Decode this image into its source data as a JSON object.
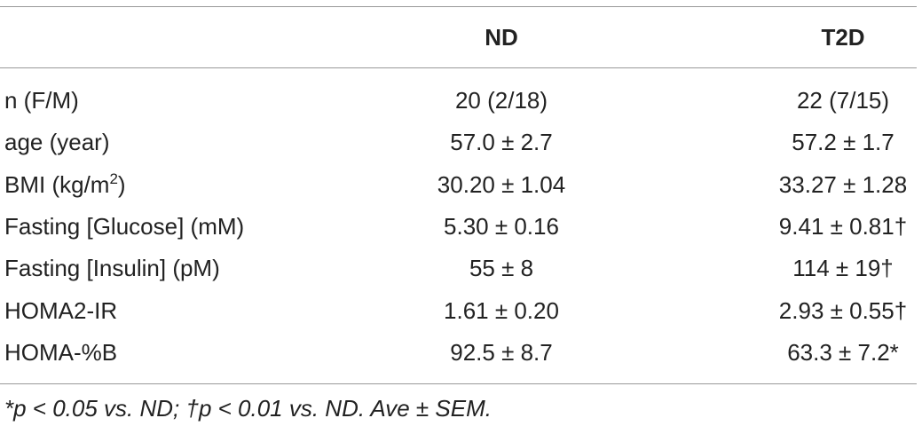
{
  "table": {
    "header": [
      "",
      "ND",
      "T2D"
    ],
    "rows": [
      {
        "label": [
          "n (F/M)"
        ],
        "nd": "20 (2/18)",
        "t2d": "22 (7/15)"
      },
      {
        "label": [
          "age (year)"
        ],
        "nd": "57.0 ± 2.7",
        "t2d": "57.2 ± 1.7"
      },
      {
        "label": [
          "BMI (kg/m",
          "2",
          ")"
        ],
        "nd": "30.20 ± 1.04",
        "t2d": "33.27 ± 1.28"
      },
      {
        "label": [
          "Fasting [Glucose] (mM)"
        ],
        "nd": "5.30 ± 0.16",
        "t2d": "9.41 ± 0.81†"
      },
      {
        "label": [
          "Fasting [Insulin] (pM)"
        ],
        "nd": "55 ± 8",
        "t2d": "114 ± 19†"
      },
      {
        "label": [
          "HOMA2-IR"
        ],
        "nd": "1.61 ± 0.20",
        "t2d": "2.93 ± 0.55†"
      },
      {
        "label": [
          "HOMA-%B"
        ],
        "nd": "92.5 ± 8.7",
        "t2d": "63.3 ± 7.2*"
      }
    ],
    "footnote": "*p < 0.05 vs. ND; †p < 0.01 vs. ND. Ave ± SEM."
  }
}
